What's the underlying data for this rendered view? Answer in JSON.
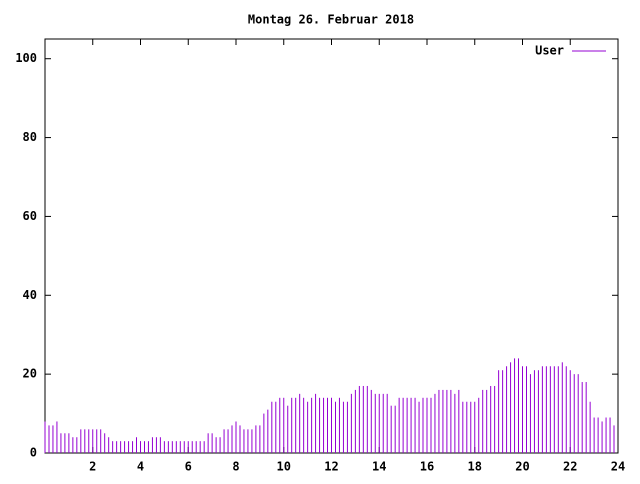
{
  "chart_data": {
    "type": "impulses",
    "title": "Montag 26. Februar 2018",
    "x": [
      0,
      0.167,
      0.333,
      0.5,
      0.667,
      0.833,
      1,
      1.167,
      1.333,
      1.5,
      1.667,
      1.833,
      2,
      2.167,
      2.333,
      2.5,
      2.667,
      2.833,
      3,
      3.167,
      3.333,
      3.5,
      3.667,
      3.833,
      4,
      4.167,
      4.333,
      4.5,
      4.667,
      4.833,
      5,
      5.167,
      5.333,
      5.5,
      5.667,
      5.833,
      6,
      6.167,
      6.333,
      6.5,
      6.667,
      6.833,
      7,
      7.167,
      7.333,
      7.5,
      7.667,
      7.833,
      8,
      8.167,
      8.333,
      8.5,
      8.667,
      8.833,
      9,
      9.167,
      9.333,
      9.5,
      9.667,
      9.833,
      10,
      10.167,
      10.333,
      10.5,
      10.667,
      10.833,
      11,
      11.167,
      11.333,
      11.5,
      11.667,
      11.833,
      12,
      12.167,
      12.333,
      12.5,
      12.667,
      12.833,
      13,
      13.167,
      13.333,
      13.5,
      13.667,
      13.833,
      14,
      14.167,
      14.333,
      14.5,
      14.667,
      14.833,
      15,
      15.167,
      15.333,
      15.5,
      15.667,
      15.833,
      16,
      16.167,
      16.333,
      16.5,
      16.667,
      16.833,
      17,
      17.167,
      17.333,
      17.5,
      17.667,
      17.833,
      18,
      18.167,
      18.333,
      18.5,
      18.667,
      18.833,
      19,
      19.167,
      19.333,
      19.5,
      19.667,
      19.833,
      20,
      20.167,
      20.333,
      20.5,
      20.667,
      20.833,
      21,
      21.167,
      21.333,
      21.5,
      21.667,
      21.833,
      22,
      22.167,
      22.333,
      22.5,
      22.667,
      22.833,
      23,
      23.167,
      23.333,
      23.5,
      23.667,
      23.833
    ],
    "series": [
      {
        "name": "User",
        "color": "#9400d3",
        "values": [
          8,
          7,
          7,
          8,
          5,
          5,
          5,
          4,
          4,
          6,
          6,
          6,
          6,
          6,
          6,
          5,
          4,
          3,
          3,
          3,
          3,
          3,
          3,
          4,
          3,
          3,
          3,
          4,
          4,
          4,
          3,
          3,
          3,
          3,
          3,
          3,
          3,
          3,
          3,
          3,
          3,
          5,
          5,
          4,
          4,
          6,
          6,
          7,
          8,
          7,
          6,
          6,
          6,
          7,
          7,
          10,
          11,
          13,
          13,
          14,
          14,
          12,
          14,
          14,
          15,
          14,
          13,
          14,
          15,
          14,
          14,
          14,
          14,
          13,
          14,
          13,
          13,
          15,
          16,
          17,
          17,
          17,
          16,
          15,
          15,
          15,
          15,
          12,
          12,
          14,
          14,
          14,
          14,
          14,
          13,
          14,
          14,
          14,
          15,
          16,
          16,
          16,
          16,
          15,
          16,
          13,
          13,
          13,
          13,
          14,
          16,
          16,
          17,
          17,
          21,
          21,
          22,
          23,
          24,
          24,
          22,
          22,
          20,
          21,
          21,
          22,
          22,
          22,
          22,
          22,
          23,
          22,
          21,
          20,
          20,
          18,
          18,
          13,
          9,
          9,
          8,
          9,
          9,
          7
        ]
      }
    ],
    "xlim": [
      0,
      24
    ],
    "xticks": [
      2,
      4,
      6,
      8,
      10,
      12,
      14,
      16,
      18,
      20,
      22,
      24
    ],
    "ylim": [
      0,
      105
    ],
    "yticks": [
      0,
      20,
      40,
      60,
      80,
      100
    ],
    "legend": "top-right"
  }
}
